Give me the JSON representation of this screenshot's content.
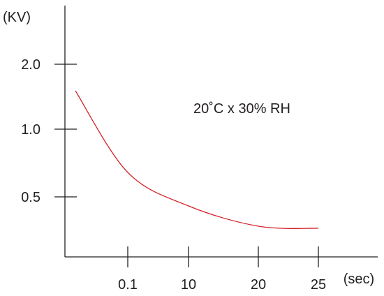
{
  "chart_data": {
    "type": "line",
    "title": "",
    "xlabel": "(sec)",
    "ylabel": "(KV)",
    "annotation": "20˚C x 30% RH",
    "x_ticks": [
      "0.1",
      "10",
      "20",
      "25"
    ],
    "y_ticks": [
      "0.5",
      "1.0",
      "2.0"
    ],
    "x_scale": "categorical-nonlinear",
    "y_scale": "categorical-nonlinear",
    "grid": false,
    "legend": "none",
    "series": [
      {
        "color": "#d2232a",
        "points": [
          {
            "x": "0",
            "y": 1.55
          },
          {
            "x": "0.1",
            "y": 0.68
          },
          {
            "x": "10",
            "y": 0.42
          },
          {
            "x": "20",
            "y": 0.3
          },
          {
            "x": "25",
            "y": 0.28
          }
        ]
      }
    ],
    "axis_color": "#231f20"
  }
}
